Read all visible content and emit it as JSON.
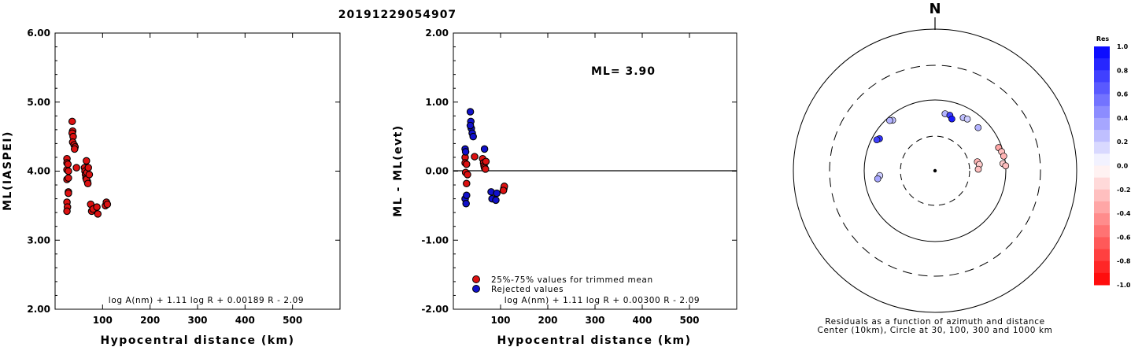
{
  "title": "20191229054907",
  "chart_data": [
    {
      "type": "scatter",
      "xlabel": "Hypocentral distance (km)",
      "ylabel": "ML(IASPEI)",
      "xlim": [
        0,
        600
      ],
      "ylim": [
        2.0,
        6.0
      ],
      "xticks": [
        "100",
        "200",
        "300",
        "400",
        "500"
      ],
      "yticks": [
        "2.00",
        "3.00",
        "4.00",
        "5.00",
        "6.00"
      ],
      "formula": "log A(nm) + 1.11 log R + 0.00189 R - 2.09",
      "series": [
        {
          "color": "#dd1111",
          "points": [
            [
              25,
              4.18
            ],
            [
              25,
              4.12
            ],
            [
              25,
              4.02
            ],
            [
              25,
              3.88
            ],
            [
              25,
              3.55
            ],
            [
              26,
              3.48
            ],
            [
              25,
              3.42
            ],
            [
              28,
              3.7
            ],
            [
              28,
              3.68
            ],
            [
              28,
              3.9
            ],
            [
              28,
              4.0
            ],
            [
              27,
              4.1
            ],
            [
              36,
              4.72
            ],
            [
              37,
              4.58
            ],
            [
              36,
              4.55
            ],
            [
              38,
              4.5
            ],
            [
              37,
              4.42
            ],
            [
              40,
              4.38
            ],
            [
              42,
              4.35
            ],
            [
              41,
              4.32
            ],
            [
              45,
              4.05
            ],
            [
              62,
              4.05
            ],
            [
              63,
              4.0
            ],
            [
              64,
              3.95
            ],
            [
              65,
              3.9
            ],
            [
              68,
              3.85
            ],
            [
              66,
              3.88
            ],
            [
              67,
              3.98
            ],
            [
              66,
              4.15
            ],
            [
              70,
              4.05
            ],
            [
              72,
              3.95
            ],
            [
              69,
              3.82
            ],
            [
              75,
              3.52
            ],
            [
              77,
              3.42
            ],
            [
              80,
              3.45
            ],
            [
              88,
              3.48
            ],
            [
              90,
              3.38
            ],
            [
              106,
              3.5
            ],
            [
              108,
              3.55
            ],
            [
              110,
              3.52
            ]
          ]
        }
      ]
    },
    {
      "type": "scatter",
      "xlabel": "Hypocentral distance (km)",
      "ylabel": "ML - ML(evt)",
      "xlim": [
        0,
        600
      ],
      "ylim": [
        -2.0,
        2.0
      ],
      "xticks": [
        "100",
        "200",
        "300",
        "400",
        "500"
      ],
      "yticks": [
        "-2.00",
        "-1.00",
        "0.00",
        "1.00",
        "2.00"
      ],
      "annotation": "ML= 3.90",
      "formula": "log A(nm) + 1.11 log R + 0.00300 R - 2.09",
      "legend": [
        "25%-75% values for trimmed mean",
        "Rejected values"
      ],
      "series": [
        {
          "name": "25%-75% values for trimmed mean",
          "color": "#dd1111",
          "points": [
            [
              25,
              0.2
            ],
            [
              25,
              0.12
            ],
            [
              26,
              -0.02
            ],
            [
              28,
              -0.18
            ],
            [
              28,
              0.1
            ],
            [
              30,
              -0.05
            ],
            [
              45,
              0.21
            ],
            [
              62,
              0.18
            ],
            [
              64,
              0.12
            ],
            [
              65,
              0.08
            ],
            [
              66,
              0.05
            ],
            [
              68,
              0.03
            ],
            [
              69,
              0.14
            ],
            [
              107,
              -0.25
            ],
            [
              108,
              -0.22
            ],
            [
              106,
              -0.28
            ]
          ]
        },
        {
          "name": "Rejected values",
          "color": "#1111cc",
          "points": [
            [
              25,
              0.32
            ],
            [
              26,
              0.28
            ],
            [
              25,
              -0.4
            ],
            [
              27,
              -0.47
            ],
            [
              28,
              -0.35
            ],
            [
              36,
              0.86
            ],
            [
              37,
              0.72
            ],
            [
              38,
              0.62
            ],
            [
              40,
              0.55
            ],
            [
              42,
              0.5
            ],
            [
              36,
              0.66
            ],
            [
              66,
              0.32
            ],
            [
              80,
              -0.3
            ],
            [
              82,
              -0.4
            ],
            [
              90,
              -0.42
            ],
            [
              92,
              -0.32
            ]
          ]
        }
      ]
    },
    {
      "type": "scatter",
      "subtype": "polar",
      "north_label": "N",
      "caption_line1": "Residuals as a function of azimuth and distance",
      "caption_line2": "Center (10km), Circle at 30, 100, 300 and 1000 km",
      "rings_km": [
        30,
        100,
        300,
        1000
      ],
      "colorbar": {
        "title": "Res",
        "min": -1.0,
        "max": 1.0,
        "labels": [
          "1.0",
          "0.8",
          "0.6",
          "0.4",
          "0.2",
          "0.0",
          "-0.2",
          "-0.4",
          "-0.6",
          "-0.8",
          "-1.0"
        ]
      },
      "points": [
        {
          "az": 320,
          "dist": 85,
          "res": 0.25
        },
        {
          "az": 318,
          "dist": 90,
          "res": 0.3
        },
        {
          "az": 300,
          "dist": 80,
          "res": 0.8
        },
        {
          "az": 298,
          "dist": 85,
          "res": 0.75
        },
        {
          "az": 265,
          "dist": 60,
          "res": 0.2
        },
        {
          "az": 262,
          "dist": 65,
          "res": 0.35
        },
        {
          "az": 10,
          "dist": 65,
          "res": 0.3
        },
        {
          "az": 15,
          "dist": 64,
          "res": 0.75
        },
        {
          "az": 18,
          "dist": 58,
          "res": 0.9
        },
        {
          "az": 28,
          "dist": 70,
          "res": 0.25
        },
        {
          "az": 32,
          "dist": 72,
          "res": 0.2
        },
        {
          "az": 45,
          "dist": 72,
          "res": 0.3
        },
        {
          "az": 78,
          "dist": 40,
          "res": -0.3
        },
        {
          "az": 82,
          "dist": 42,
          "res": -0.2
        },
        {
          "az": 88,
          "dist": 40,
          "res": -0.25
        },
        {
          "az": 70,
          "dist": 90,
          "res": -0.35
        },
        {
          "az": 74,
          "dist": 95,
          "res": -0.25
        },
        {
          "az": 78,
          "dist": 98,
          "res": -0.3
        },
        {
          "az": 84,
          "dist": 92,
          "res": -0.2
        },
        {
          "az": 86,
          "dist": 100,
          "res": -0.25
        }
      ]
    }
  ]
}
